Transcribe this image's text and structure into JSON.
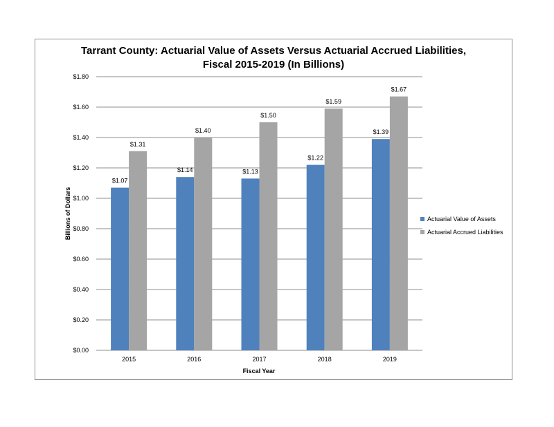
{
  "chart_data": {
    "type": "bar",
    "title": "Tarrant County: Actuarial Value of Assets Versus Actuarial Accrued Liabilities,",
    "subtitle": "Fiscal 2015-2019 (In Billions)",
    "xlabel": "Fiscal Year",
    "ylabel": "Billions of Dollars",
    "categories": [
      "2015",
      "2016",
      "2017",
      "2018",
      "2019"
    ],
    "ylim": [
      0,
      1.8
    ],
    "y_ticks": [
      "$0.00",
      "$0.20",
      "$0.40",
      "$0.60",
      "$0.80",
      "$1.00",
      "$1.20",
      "$1.40",
      "$1.60",
      "$1.80"
    ],
    "grid": true,
    "legend_position": "right",
    "series": [
      {
        "name": "Actuarial Value of Assets",
        "color": "#4f81bd",
        "values": [
          1.07,
          1.14,
          1.13,
          1.22,
          1.39
        ],
        "labels": [
          "$1.07",
          "$1.14",
          "$1.13",
          "$1.22",
          "$1.39"
        ]
      },
      {
        "name": "Actuarial Accrued Liabilities",
        "color": "#a5a5a5",
        "values": [
          1.31,
          1.4,
          1.5,
          1.59,
          1.67
        ],
        "labels": [
          "$1.31",
          "$1.40",
          "$1.50",
          "$1.59",
          "$1.67"
        ]
      }
    ]
  }
}
